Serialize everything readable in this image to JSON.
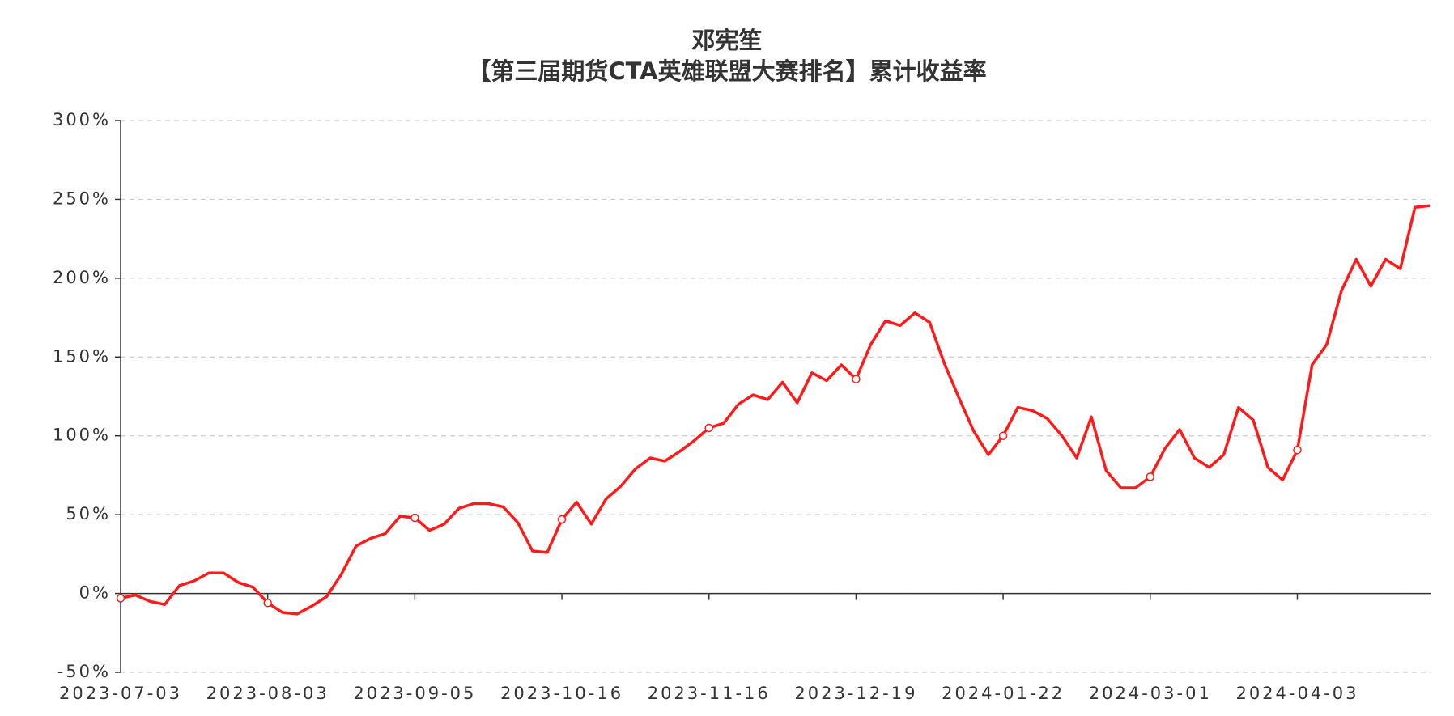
{
  "chart_data": {
    "type": "line",
    "title": "邓宪笙",
    "subtitle": "【第三届期货CTA英雄联盟大赛排名】累计收益率",
    "categories": [
      "2023-07-03",
      null,
      null,
      null,
      null,
      null,
      null,
      null,
      null,
      null,
      "2023-08-03",
      null,
      null,
      null,
      null,
      null,
      null,
      null,
      null,
      null,
      "2023-09-05",
      null,
      null,
      null,
      null,
      null,
      null,
      null,
      null,
      null,
      "2023-10-16",
      null,
      null,
      null,
      null,
      null,
      null,
      null,
      null,
      null,
      "2023-11-16",
      null,
      null,
      null,
      null,
      null,
      null,
      null,
      null,
      null,
      "2023-12-19",
      null,
      null,
      null,
      null,
      null,
      null,
      null,
      null,
      null,
      "2024-01-22",
      null,
      null,
      null,
      null,
      null,
      null,
      null,
      null,
      null,
      "2024-03-01",
      null,
      null,
      null,
      null,
      null,
      null,
      null,
      null,
      null,
      "2024-04-03",
      null,
      null,
      null,
      null,
      null,
      null,
      null,
      null,
      null
    ],
    "series": [
      {
        "name": "累计收益率",
        "color": "#ff1a1a",
        "values": [
          -3,
          -1,
          -5,
          -7,
          5,
          8,
          13,
          13,
          7,
          4,
          -6,
          -12,
          -13,
          -8,
          -2,
          12,
          30,
          35,
          38,
          49,
          48,
          40,
          44,
          54,
          57,
          57,
          55,
          45,
          27,
          26,
          47,
          58,
          44,
          60,
          68,
          79,
          86,
          84,
          90,
          97,
          105,
          108,
          120,
          126,
          123,
          134,
          121,
          140,
          135,
          145,
          136,
          158,
          173,
          170,
          178,
          172,
          146,
          124,
          103,
          88,
          100,
          118,
          116,
          111,
          100,
          86,
          112,
          78,
          67,
          67,
          74,
          92,
          104,
          86,
          80,
          88,
          118,
          110,
          80,
          72,
          91,
          145,
          158,
          192,
          212,
          195,
          212,
          206,
          245,
          246
        ]
      }
    ],
    "ylim": [
      -50,
      300
    ],
    "yticks": [
      {
        "value": -50,
        "label": "-50%"
      },
      {
        "value": 0,
        "label": "0%"
      },
      {
        "value": 50,
        "label": "50%"
      },
      {
        "value": 100,
        "label": "100%"
      },
      {
        "value": 150,
        "label": "150%"
      },
      {
        "value": 200,
        "label": "200%"
      },
      {
        "value": 250,
        "label": "250%"
      },
      {
        "value": 300,
        "label": "300%"
      }
    ],
    "grid": true
  }
}
